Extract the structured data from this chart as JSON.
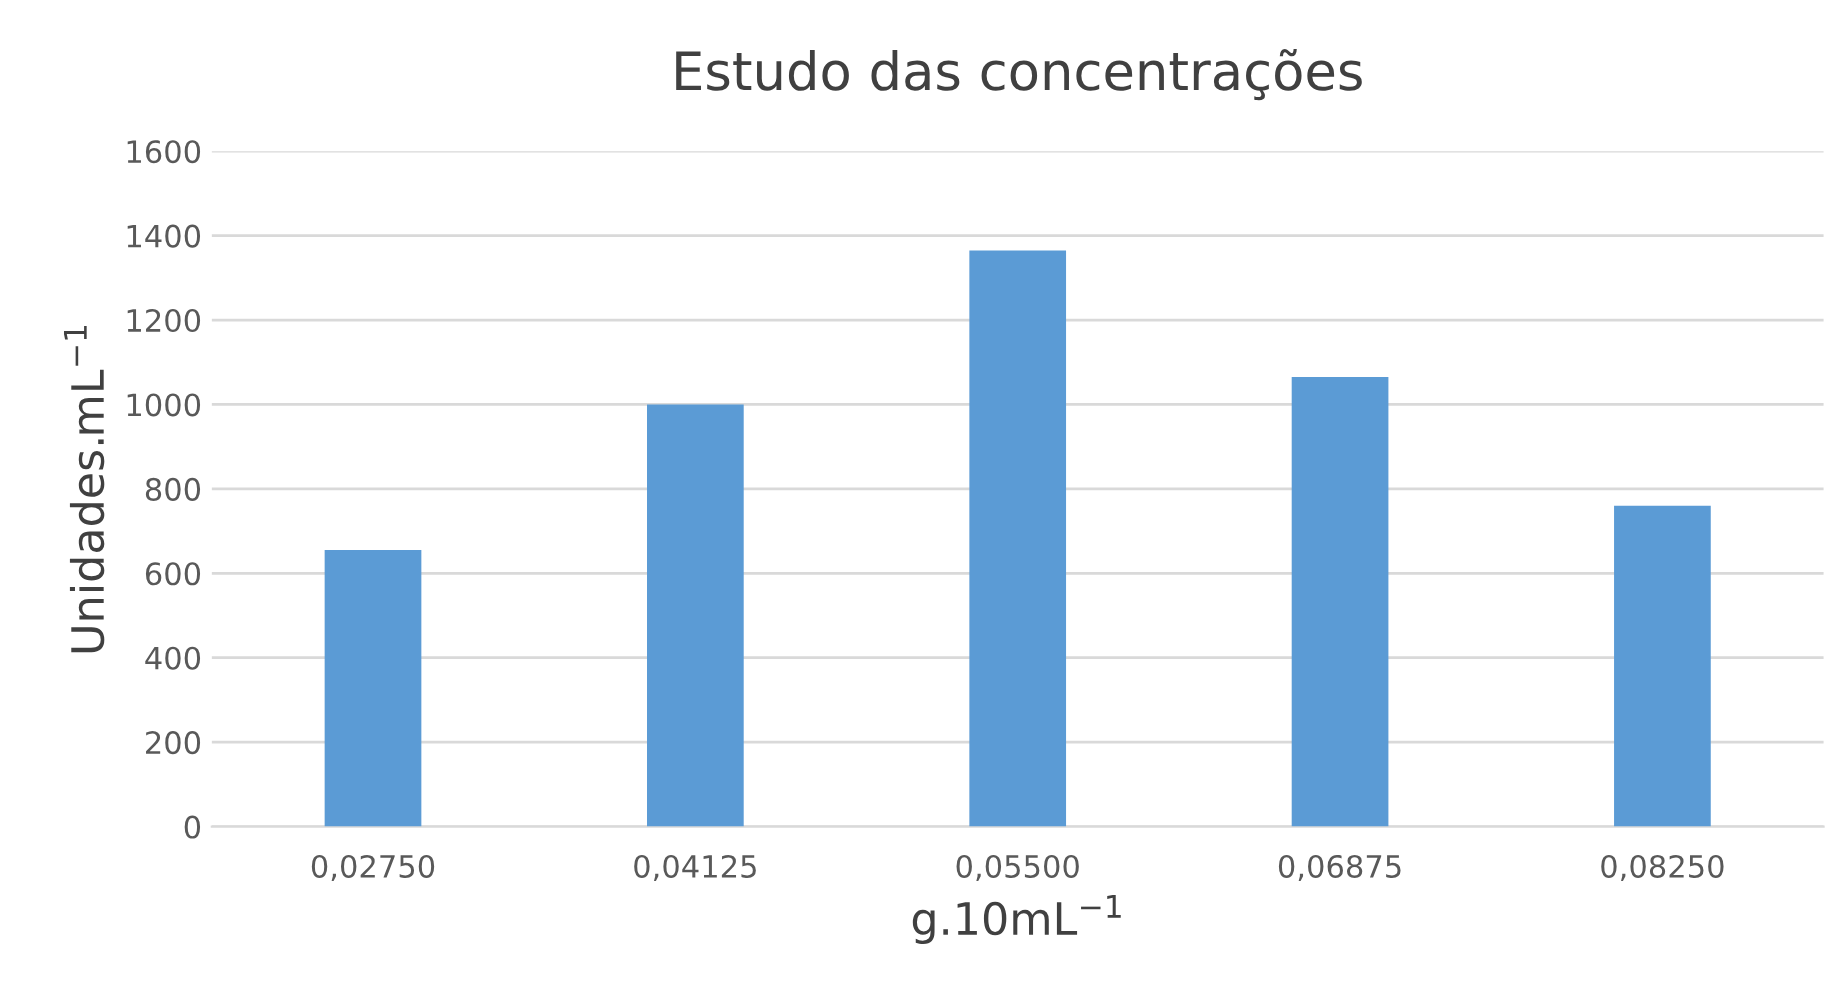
{
  "chart_data": {
    "type": "bar",
    "title": "Estudo das concentrações",
    "xlabel": "g.10mL$^{−1}$",
    "ylabel": "Unidades.mL$^{−1}$",
    "categories": [
      "0,02750",
      "0,04125",
      "0,05500",
      "0,06875",
      "0,08250"
    ],
    "values": [
      655,
      1000,
      1365,
      1065,
      760
    ],
    "color": "#5b9bd5",
    "ylim": [
      0,
      1600
    ],
    "yticks": [
      0,
      200,
      400,
      600,
      800,
      1000,
      1200,
      1400,
      1600
    ],
    "grid": "y",
    "legend": false
  }
}
